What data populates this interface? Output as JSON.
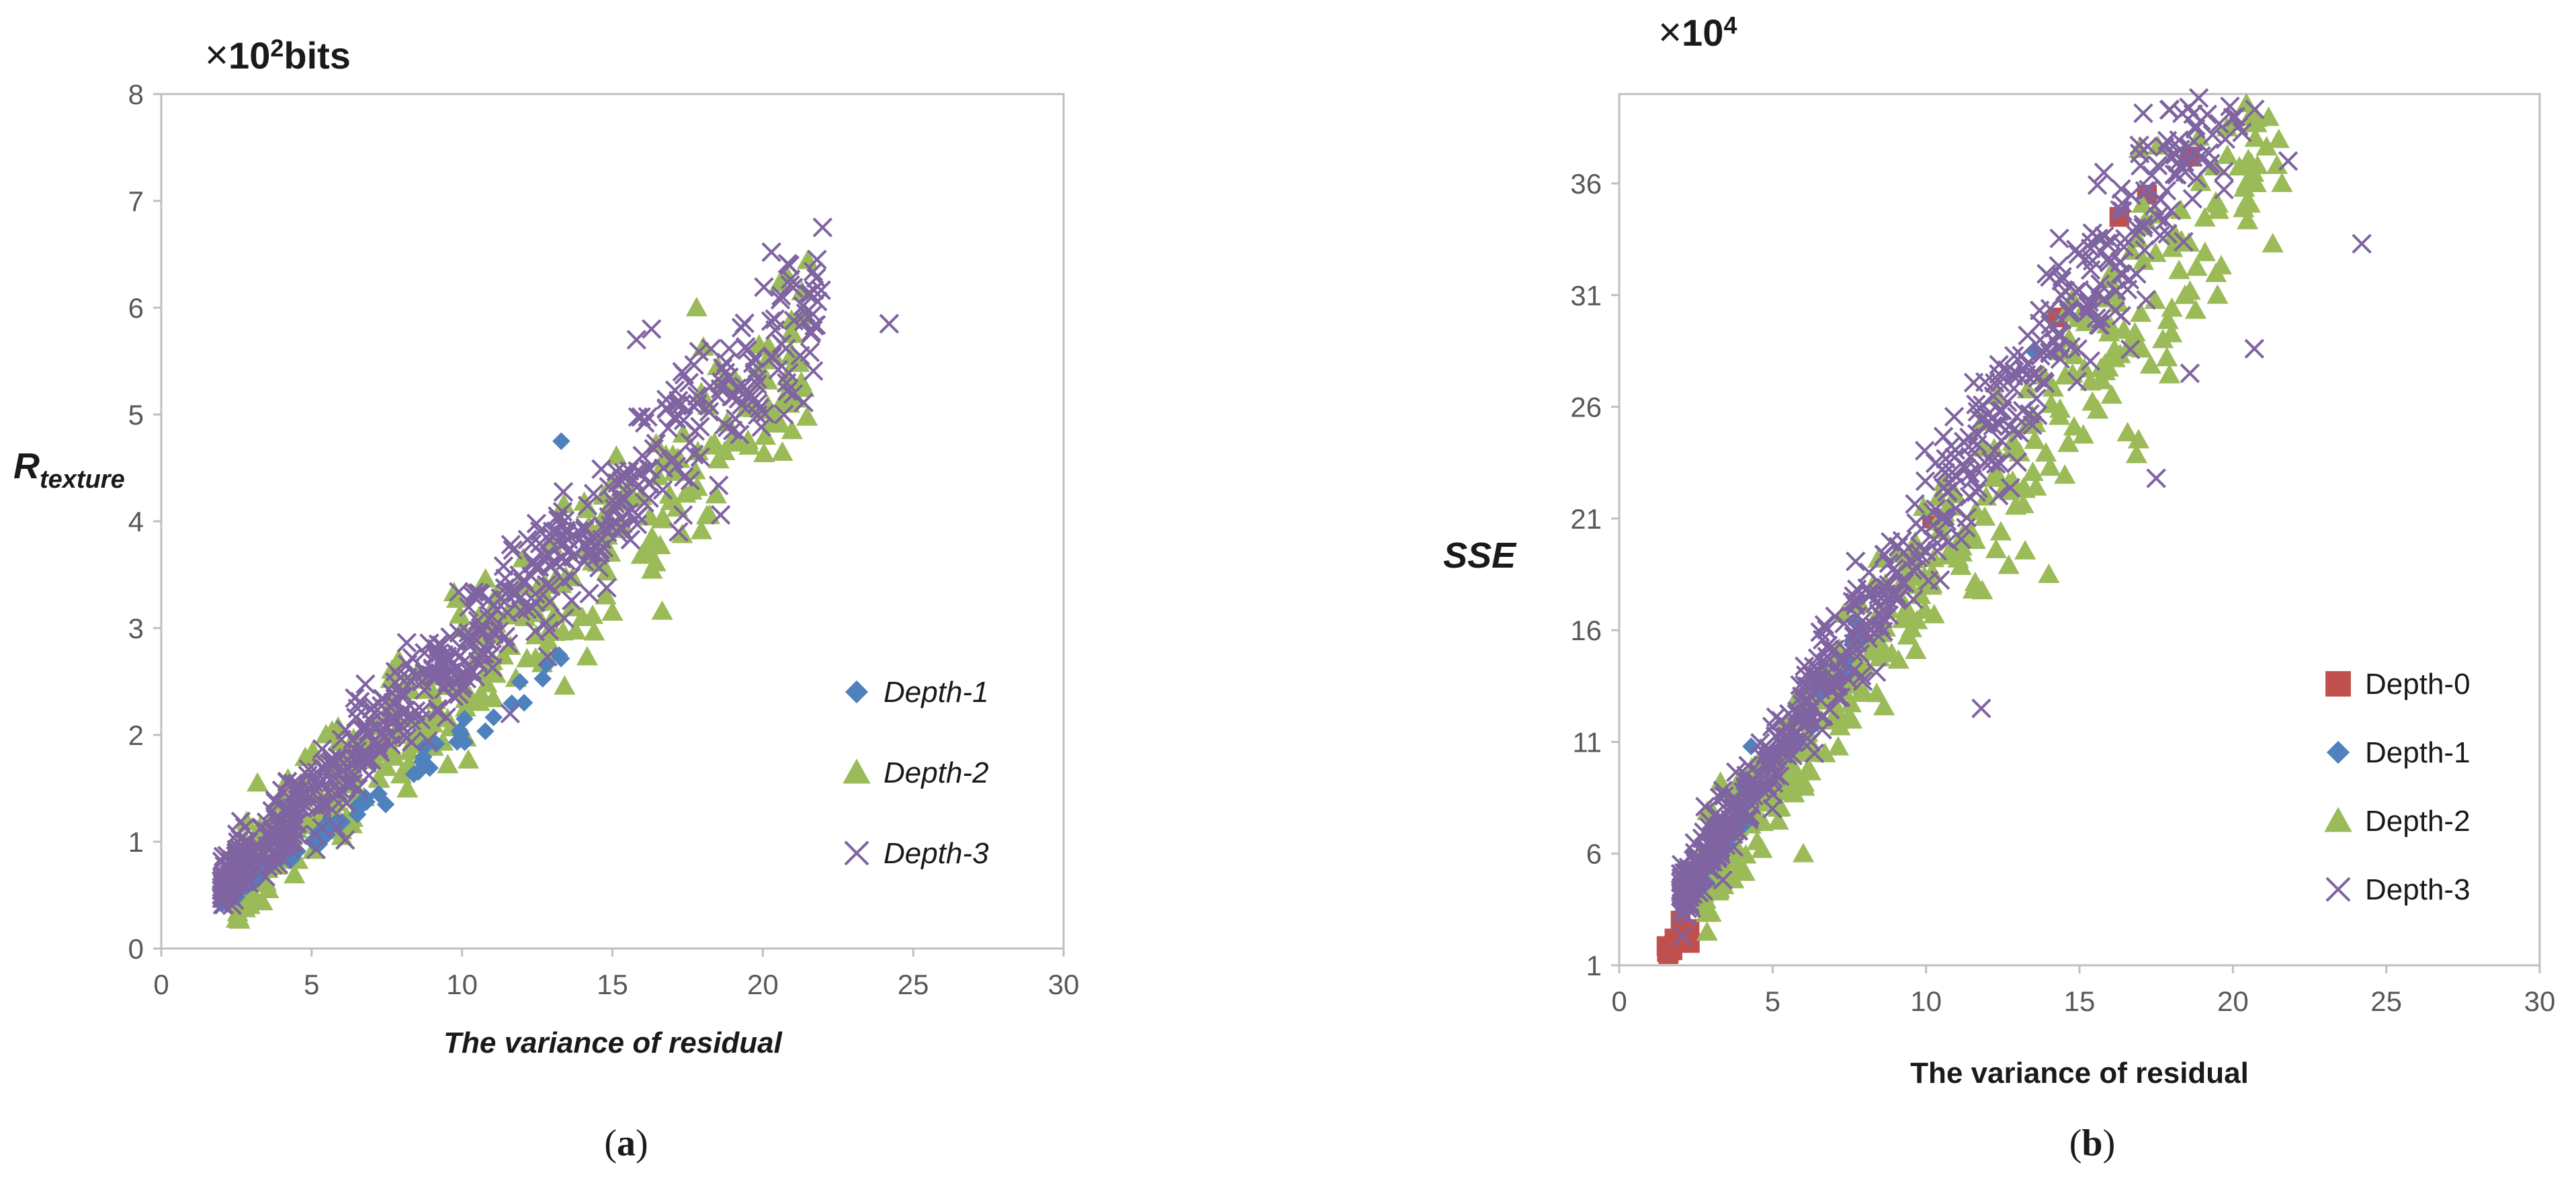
{
  "charts": [
    {
      "id": "a",
      "type": "scatter",
      "caption_open": "(",
      "caption_letter": "a",
      "caption_close": ")",
      "multiplier_symbol": "×",
      "multiplier_base": "10",
      "multiplier_exp": "2",
      "multiplier_unit": "bits",
      "ylabel_main": "R",
      "ylabel_sub": "texture",
      "xlabel": "The variance of residual",
      "xlim": [
        0,
        30
      ],
      "ylim": [
        0,
        8
      ],
      "xticks": [
        "0",
        "5",
        "10",
        "15",
        "20",
        "25",
        "30"
      ],
      "yticks": [
        "0",
        "1",
        "2",
        "3",
        "4",
        "5",
        "6",
        "7",
        "8"
      ],
      "grid": false,
      "legend_position": "lower-right",
      "series": [
        {
          "name": "Depth-1",
          "marker": "diamond",
          "color": "#4f81bd",
          "slope": 0.195,
          "intercept": 0.05,
          "xmin": 2.0,
          "xmax": 13.5,
          "count": 60,
          "spread": 0.1,
          "points": [
            [
              2.1,
              0.45
            ],
            [
              2.3,
              0.5
            ],
            [
              2.5,
              0.48
            ],
            [
              2.8,
              0.6
            ],
            [
              3.2,
              0.65
            ],
            [
              4.0,
              0.85
            ],
            [
              13.3,
              4.75
            ]
          ]
        },
        {
          "name": "Depth-2",
          "marker": "triangle",
          "color": "#9bbb59",
          "slope": 0.255,
          "intercept": 0.0,
          "xmin": 2.5,
          "xmax": 21.5,
          "count": 420,
          "spread": 0.55,
          "points": [
            [
              21.3,
              6.15
            ],
            [
              20.8,
              6.3
            ],
            [
              21.0,
              5.75
            ],
            [
              17.8,
              6.0
            ],
            [
              19.0,
              5.3
            ],
            [
              15.0,
              3.15
            ],
            [
              14.0,
              3.1
            ],
            [
              6.0,
              1.05
            ],
            [
              3.2,
              1.55
            ],
            [
              18.5,
              5.45
            ]
          ]
        },
        {
          "name": "Depth-3",
          "marker": "x",
          "color": "#8064a2",
          "slope": 0.275,
          "intercept": 0.05,
          "xmin": 2.0,
          "xmax": 22.0,
          "count": 650,
          "spread": 0.42,
          "points": [
            [
              21.8,
              6.45
            ],
            [
              24.2,
              5.85
            ],
            [
              20.7,
              5.0
            ],
            [
              16.3,
              5.8
            ],
            [
              15.8,
              5.7
            ],
            [
              11.6,
              2.2
            ],
            [
              17.2,
              3.9
            ]
          ]
        }
      ]
    },
    {
      "id": "b",
      "type": "scatter",
      "caption_open": "(",
      "caption_letter": "b",
      "caption_close": ")",
      "multiplier_symbol": "×",
      "multiplier_base": "10",
      "multiplier_exp": "4",
      "ylabel_main": "SSE",
      "xlabel": "The variance of residual",
      "xlim": [
        0,
        30
      ],
      "ylim": [
        1,
        40
      ],
      "xticks": [
        "0",
        "5",
        "10",
        "15",
        "20",
        "25",
        "30"
      ],
      "yticks": [
        "1",
        "6",
        "11",
        "16",
        "21",
        "26",
        "31",
        "36"
      ],
      "grid": false,
      "legend_position": "lower-right",
      "series": [
        {
          "name": "Depth-0",
          "marker": "square",
          "color": "#c0504d",
          "slope": 2.0,
          "intercept": -1.5,
          "xmin": 1.5,
          "xmax": 3.0,
          "count": 10,
          "spread": 0.6,
          "points": [
            [
              1.6,
              1.5
            ],
            [
              1.8,
              2.2
            ],
            [
              2.0,
              3.0
            ],
            [
              2.3,
              2.0
            ],
            [
              14.3,
              30.0
            ],
            [
              16.3,
              34.5
            ],
            [
              17.2,
              35.5
            ],
            [
              18.6,
              37.2
            ],
            [
              10.2,
              21.0
            ]
          ]
        },
        {
          "name": "Depth-1",
          "marker": "diamond",
          "color": "#4f81bd",
          "slope": 2.05,
          "intercept": -0.5,
          "xmin": 2.0,
          "xmax": 8.0,
          "count": 40,
          "spread": 0.8,
          "points": [
            [
              13.5,
              28.5
            ],
            [
              4.3,
              10.8
            ],
            [
              3.8,
              7.0
            ]
          ]
        },
        {
          "name": "Depth-2",
          "marker": "triangle",
          "color": "#9bbb59",
          "slope": 1.82,
          "intercept": 0.0,
          "xmin": 2.5,
          "xmax": 21.5,
          "count": 420,
          "spread": 2.8,
          "points": [
            [
              20.8,
              36.8
            ],
            [
              21.6,
              36.0
            ],
            [
              18.3,
              34.8
            ],
            [
              21.3,
              33.3
            ],
            [
              18.3,
              34.8
            ],
            [
              19.5,
              31.0
            ],
            [
              14.0,
              18.5
            ],
            [
              6.0,
              6.0
            ],
            [
              3.3,
              9.2
            ]
          ]
        },
        {
          "name": "Depth-3",
          "marker": "x",
          "color": "#8064a2",
          "slope": 2.05,
          "intercept": 0.0,
          "xmin": 2.0,
          "xmax": 22.0,
          "count": 650,
          "spread": 2.2,
          "points": [
            [
              21.8,
              37.0
            ],
            [
              24.2,
              33.3
            ],
            [
              20.7,
              28.6
            ],
            [
              16.0,
              32.5
            ],
            [
              17.5,
              22.8
            ],
            [
              11.8,
              12.5
            ],
            [
              18.6,
              27.5
            ]
          ]
        }
      ]
    }
  ]
}
